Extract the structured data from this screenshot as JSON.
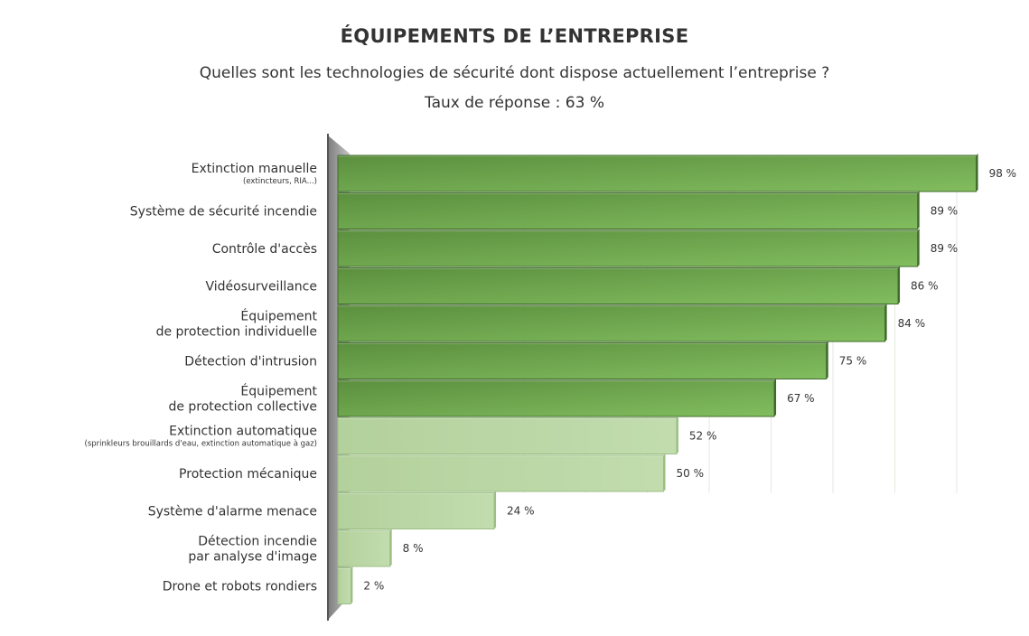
{
  "chart_data": {
    "type": "bar",
    "orientation": "horizontal",
    "title": "ÉQUIPEMENTS DE L’ENTREPRISE",
    "subtitle": "Quelles sont les technologies de sécurité dont dispose actuellement l’entreprise ?",
    "response_rate": "Taux de réponse : 63 %",
    "xlim": [
      0,
      100
    ],
    "grid": true,
    "categories": [
      {
        "label": [
          "Extinction manuelle"
        ],
        "sublabel": "(extincteurs, RIA...)",
        "value": 98
      },
      {
        "label": [
          "Système de sécurité incendie"
        ],
        "sublabel": "",
        "value": 89
      },
      {
        "label": [
          "Contrôle d'accès"
        ],
        "sublabel": "",
        "value": 89
      },
      {
        "label": [
          "Vidéosurveillance"
        ],
        "sublabel": "",
        "value": 86
      },
      {
        "label": [
          "Équipement",
          "de protection individuelle"
        ],
        "sublabel": "",
        "value": 84
      },
      {
        "label": [
          "Détection d'intrusion"
        ],
        "sublabel": "",
        "value": 75
      },
      {
        "label": [
          "Équipement",
          "de protection collective"
        ],
        "sublabel": "",
        "value": 67
      },
      {
        "label": [
          "Extinction automatique"
        ],
        "sublabel": "(sprinkleurs brouillards d'eau, extinction automatique à gaz)",
        "value": 52
      },
      {
        "label": [
          "Protection mécanique"
        ],
        "sublabel": "",
        "value": 50
      },
      {
        "label": [
          "Système d'alarme menace"
        ],
        "sublabel": "",
        "value": 24
      },
      {
        "label": [
          "Détection incendie",
          "par analyse d'image"
        ],
        "sublabel": "",
        "value": 8
      },
      {
        "label": [
          "Drone et robots rondiers"
        ],
        "sublabel": "",
        "value": 2
      }
    ],
    "value_suffix": " %",
    "colors": {
      "dark": "#5b8f3e",
      "mid": "#82bd5f",
      "light": "#c2dcae",
      "edge": "#3f6b2a",
      "axis_wall": "#9a9a9a",
      "axis_line": "#555555"
    }
  }
}
